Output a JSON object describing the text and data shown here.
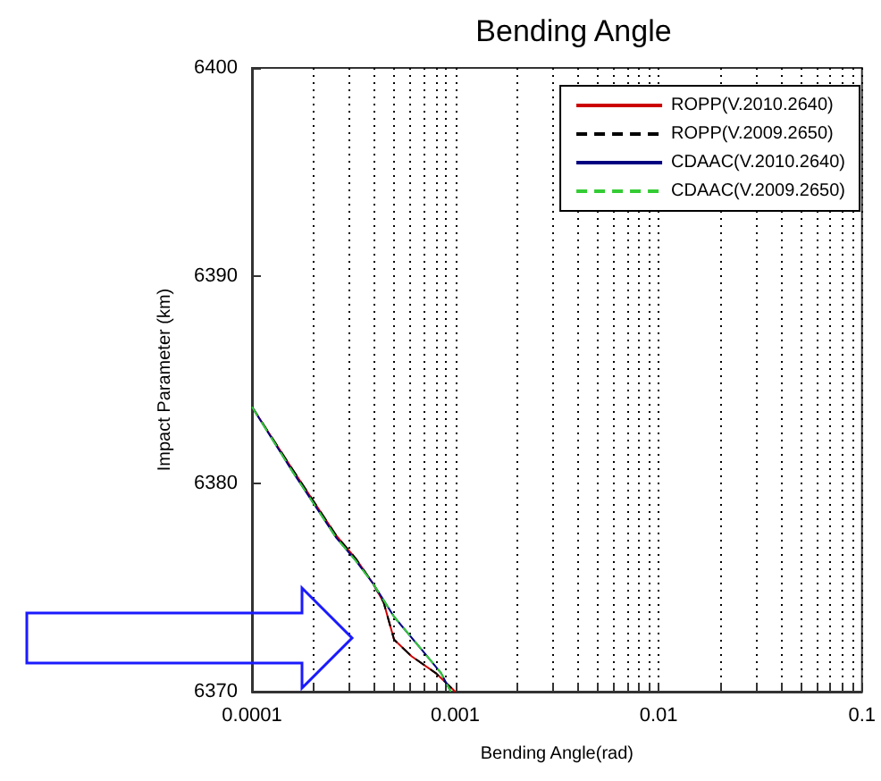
{
  "chart_data": {
    "type": "line",
    "title": "Bending Angle",
    "xlabel": "Bending Angle(rad)",
    "ylabel": "Impact Parameter (km)",
    "log": "x",
    "grid": "x",
    "legend": "top right",
    "marker": "none",
    "xlim": [
      0.0001,
      0.1
    ],
    "ylim": [
      6370,
      6400
    ],
    "yticks": [
      6370,
      6380,
      6390,
      6400
    ],
    "xticks": [
      0.0001,
      {
        "value": 0.0002,
        "label": null
      },
      {
        "value": 0.0003,
        "label": null
      },
      {
        "value": 0.0004,
        "label": null
      },
      {
        "value": 0.0005,
        "label": null
      },
      {
        "value": 0.0006,
        "label": null
      },
      {
        "value": 0.0007,
        "label": null
      },
      {
        "value": 0.0008,
        "label": null
      },
      {
        "value": 0.0009,
        "label": null
      },
      0.001,
      {
        "value": 0.002,
        "label": null
      },
      {
        "value": 0.003,
        "label": null
      },
      {
        "value": 0.004,
        "label": null
      },
      {
        "value": 0.005,
        "label": null
      },
      {
        "value": 0.006,
        "label": null
      },
      {
        "value": 0.007,
        "label": null
      },
      {
        "value": 0.008,
        "label": null
      },
      {
        "value": 0.009,
        "label": null
      },
      0.01,
      {
        "value": 0.02,
        "label": null
      },
      {
        "value": 0.03,
        "label": null
      },
      {
        "value": 0.04,
        "label": null
      },
      {
        "value": 0.05,
        "label": null
      },
      {
        "value": 0.06,
        "label": null
      },
      {
        "value": 0.07,
        "label": null
      },
      {
        "value": 0.08,
        "label": null
      },
      {
        "value": 0.09,
        "label": null
      },
      0.1
    ],
    "series": [
      {
        "name": "ROPP(V.2010.2640)",
        "color": "#cc0000",
        "line_style": "solid",
        "x": [
          0.0001,
          0.000158,
          0.00026,
          0.000324,
          0.000394,
          0.000444,
          0.0005,
          0.00061,
          0.0008,
          0.001
        ],
        "values": [
          6383.7,
          6380.7,
          6377.5,
          6376.4,
          6375.2,
          6374.3,
          6372.5,
          6371.7,
          6370.9,
          6370
        ]
      },
      {
        "name": "ROPP(V.2009.2650)",
        "color": "#000000",
        "line_style": "dashed",
        "x": [
          0.0001,
          0.000158,
          0.00026,
          0.000324,
          0.000394,
          0.000444,
          0.0005,
          0.00061,
          0.0008,
          0.001
        ],
        "values": [
          6383.7,
          6380.7,
          6377.5,
          6376.4,
          6375.2,
          6374.3,
          6372.5,
          6371.7,
          6370.9,
          6370
        ]
      },
      {
        "name": "CDAAC(V.2010.2640)",
        "color": "#000080",
        "line_style": "solid",
        "x": [
          0.0001,
          0.000158,
          0.00026,
          0.000324,
          0.000394,
          0.000444,
          0.0005,
          0.0007,
          0.00085,
          0.00095
        ],
        "values": [
          6383.7,
          6380.6,
          6377.4,
          6376.3,
          6375.2,
          6374.4,
          6373.6,
          6371.9,
          6370.9,
          6370
        ]
      },
      {
        "name": "CDAAC(V.2009.2650)",
        "color": "#33cc33",
        "line_style": "dashed",
        "x": [
          0.0001,
          0.000158,
          0.00026,
          0.000324,
          0.000394,
          0.000444,
          0.0005,
          0.0007,
          0.00085,
          0.00095
        ],
        "values": [
          6383.7,
          6380.6,
          6377.4,
          6376.3,
          6375.2,
          6374.4,
          6373.6,
          6371.9,
          6370.9,
          6370
        ]
      }
    ]
  }
}
